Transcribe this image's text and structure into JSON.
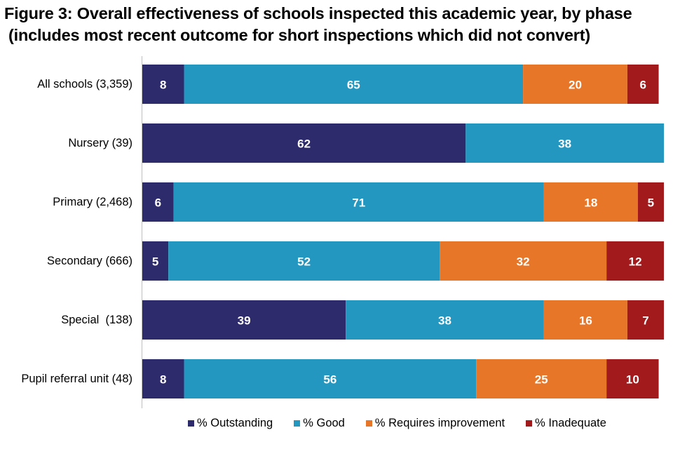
{
  "title": {
    "line1": "Figure 3: Overall effectiveness of schools inspected this academic year, by phase",
    "line2": "(includes most recent outcome for short inspections which did not convert)"
  },
  "chart_data": {
    "type": "bar",
    "orientation": "horizontal",
    "stacked": true,
    "categories": [
      "All schools (3,359)",
      "Nursery (39)",
      "Primary (2,468)",
      "Secondary (666)",
      "Special  (138)",
      "Pupil referral unit (48)"
    ],
    "series": [
      {
        "name": "% Outstanding",
        "color": "#2e2b6c",
        "values": [
          8,
          62,
          6,
          5,
          39,
          8
        ]
      },
      {
        "name": "% Good",
        "color": "#2497c0",
        "values": [
          65,
          38,
          71,
          52,
          38,
          56
        ]
      },
      {
        "name": "% Requires improvement",
        "color": "#e87629",
        "values": [
          20,
          0,
          18,
          32,
          16,
          25
        ]
      },
      {
        "name": "% Inadequate",
        "color": "#a31a1d",
        "values": [
          6,
          0,
          5,
          12,
          7,
          10
        ]
      }
    ],
    "xlim": [
      0,
      100
    ],
    "legend": "bottom",
    "grid": false
  }
}
